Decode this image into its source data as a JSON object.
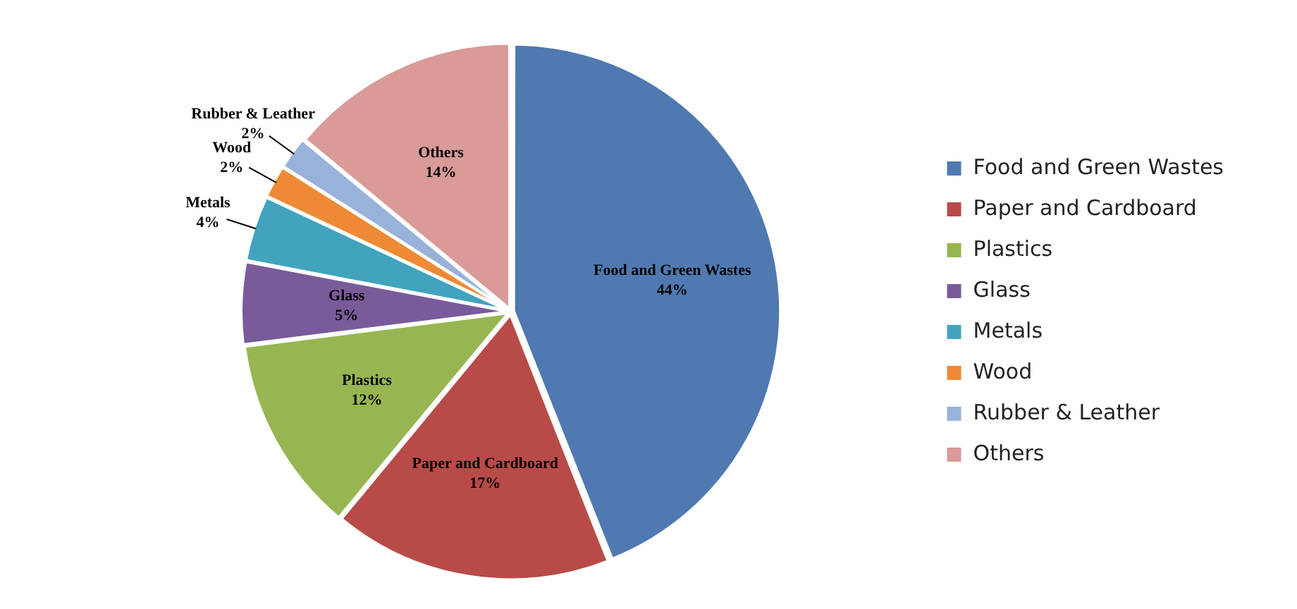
{
  "chart_data": {
    "type": "pie",
    "categories": [
      "Food and Green Wastes",
      "Paper and Cardboard",
      "Plastics",
      "Glass",
      "Metals",
      "Wood",
      "Rubber & Leather",
      "Others"
    ],
    "values": [
      44,
      17,
      12,
      5,
      4,
      2,
      2,
      14
    ],
    "colors": [
      "#4f79b0",
      "#b84b48",
      "#97b652",
      "#7a5b9a",
      "#41a3bd",
      "#ee8a35",
      "#98b2da",
      "#d99a98"
    ],
    "value_labels": [
      "44%",
      "17%",
      "12%",
      "5%",
      "4%",
      "2%",
      "2%",
      "14%"
    ],
    "legend": "right"
  }
}
